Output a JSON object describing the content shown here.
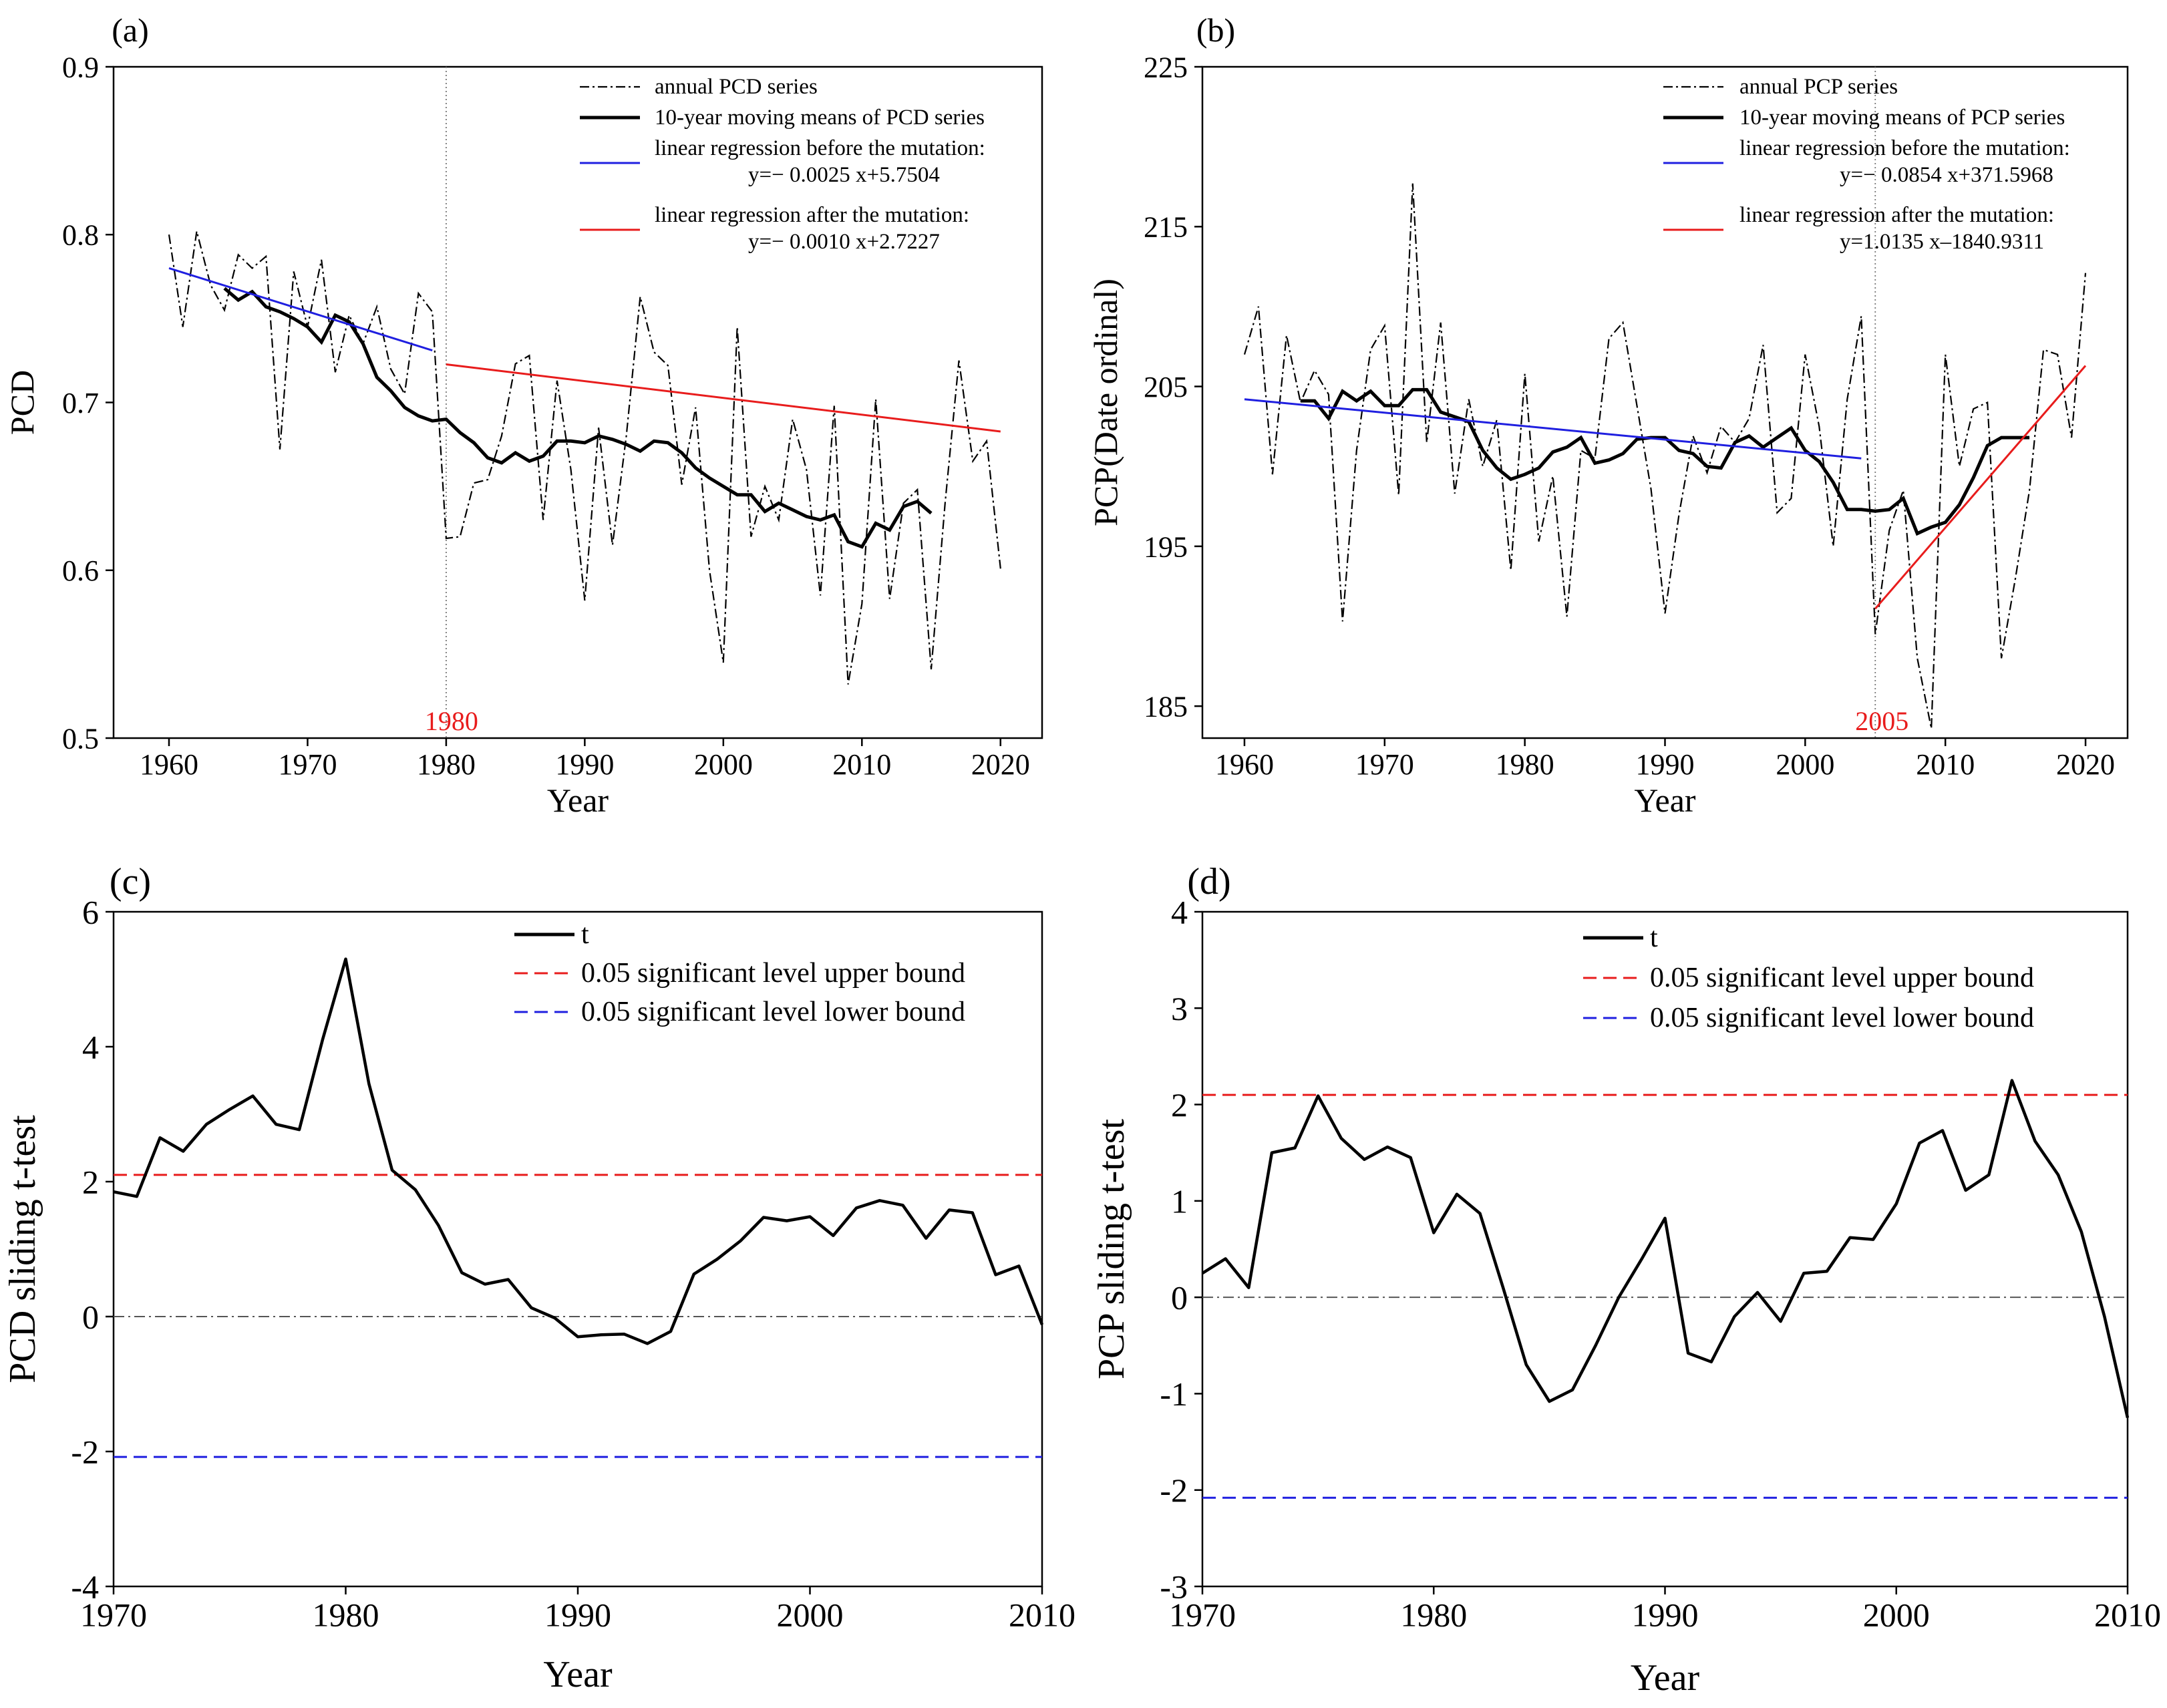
{
  "chart_data": [
    {
      "panel_label": "(a)",
      "type": "line",
      "xlabel": "Year",
      "ylabel": "PCD",
      "xlim": [
        1956,
        2023
      ],
      "ylim": [
        0.5,
        0.9
      ],
      "xticks": [
        "1960",
        "1970",
        "1980",
        "1990",
        "2000",
        "2010",
        "2020"
      ],
      "yticks": [
        "0.5",
        "0.6",
        "0.7",
        "0.8",
        "0.9"
      ],
      "mutation_year": 1980,
      "mutation_label": "1980",
      "legend": [
        {
          "label": "annual PCD series",
          "style": "dashdot",
          "color": "#000000"
        },
        {
          "label": "10-year moving means of PCD series",
          "style": "solid-thick",
          "color": "#000000"
        },
        {
          "label": "linear regression before the mutation:",
          "equation": "y=− 0.0025 x+5.7504",
          "style": "solid",
          "color": "#1f1fe0"
        },
        {
          "label": "linear regression after the mutation:",
          "equation": "y=− 0.0010 x+2.7227",
          "style": "solid",
          "color": "#e81c1c"
        }
      ],
      "series": [
        {
          "name": "annual PCD series",
          "x_start": 1960,
          "values": [
            0.8,
            0.745,
            0.802,
            0.77,
            0.755,
            0.788,
            0.78,
            0.787,
            0.672,
            0.778,
            0.745,
            0.785,
            0.718,
            0.752,
            0.735,
            0.757,
            0.72,
            0.705,
            0.765,
            0.754,
            0.619,
            0.62,
            0.652,
            0.654,
            0.68,
            0.723,
            0.728,
            0.63,
            0.713,
            0.66,
            0.582,
            0.685,
            0.615,
            0.68,
            0.763,
            0.73,
            0.722,
            0.651,
            0.697,
            0.6,
            0.545,
            0.745,
            0.62,
            0.65,
            0.63,
            0.69,
            0.66,
            0.585,
            0.698,
            0.532,
            0.58,
            0.702,
            0.583,
            0.64,
            0.648,
            0.541,
            0.64,
            0.725,
            0.665,
            0.677,
            0.601
          ]
        },
        {
          "name": "10-year moving means of PCD series",
          "x_start": 1964,
          "values": [
            0.768,
            0.761,
            0.766,
            0.757,
            0.754,
            0.75,
            0.745,
            0.736,
            0.752,
            0.748,
            0.735,
            0.715,
            0.707,
            0.697,
            0.692,
            0.689,
            0.69,
            0.682,
            0.676,
            0.667,
            0.664,
            0.67,
            0.665,
            0.668,
            0.677,
            0.677,
            0.676,
            0.68,
            0.678,
            0.675,
            0.671,
            0.677,
            0.676,
            0.67,
            0.661,
            0.655,
            0.65,
            0.645,
            0.645,
            0.635,
            0.64,
            0.636,
            0.632,
            0.63,
            0.633,
            0.617,
            0.614,
            0.628,
            0.624,
            0.638,
            0.641,
            0.634
          ]
        },
        {
          "name": "linear regression before the mutation",
          "x": [
            1960,
            1979
          ],
          "values": [
            0.78,
            0.731
          ]
        },
        {
          "name": "linear regression after the mutation",
          "x": [
            1980,
            2020
          ],
          "values": [
            0.7227,
            0.6827
          ]
        }
      ]
    },
    {
      "panel_label": "(b)",
      "type": "line",
      "xlabel": "Year",
      "ylabel": "PCP(Date ordinal)",
      "xlim": [
        1957,
        2023
      ],
      "ylim": [
        183,
        225
      ],
      "xticks": [
        "1960",
        "1970",
        "1980",
        "1990",
        "2000",
        "2010",
        "2020"
      ],
      "yticks": [
        "185",
        "195",
        "205",
        "215",
        "225"
      ],
      "mutation_year": 2005,
      "mutation_label": "2005",
      "legend": [
        {
          "label": "annual PCP series",
          "style": "dashdot",
          "color": "#000000"
        },
        {
          "label": "10-year moving means of PCP series",
          "style": "solid-thick",
          "color": "#000000"
        },
        {
          "label": "linear regression before the mutation:",
          "equation": "y=− 0.0854 x+371.5968",
          "style": "solid",
          "color": "#1f1fe0"
        },
        {
          "label": "linear regression after the mutation:",
          "equation": "y=1.0135 x–1840.9311",
          "style": "solid",
          "color": "#e81c1c"
        }
      ],
      "series": [
        {
          "name": "annual PCP series",
          "x_start": 1960,
          "values": [
            207,
            210,
            199.5,
            208.2,
            204,
            206,
            204.5,
            190.3,
            201,
            207.3,
            208.8,
            198.2,
            217.7,
            201.5,
            209,
            198.3,
            204.2,
            200,
            202.9,
            193.5,
            205.8,
            195.3,
            199.4,
            190.6,
            201,
            200.5,
            208,
            209,
            203.8,
            198.6,
            190.8,
            197,
            201.9,
            199.6,
            202.5,
            201.5,
            203,
            207.6,
            197.1,
            198,
            207,
            202.5,
            195,
            204.2,
            209.4,
            189.5,
            196,
            198.5,
            188,
            183.6,
            207,
            200,
            203.6,
            204,
            188,
            193,
            198.5,
            207.3,
            207,
            201.8,
            212.1
          ]
        },
        {
          "name": "10-year moving means of PCP series",
          "x_start": 1964,
          "values": [
            204.1,
            204.1,
            203.0,
            204.7,
            204.1,
            204.7,
            203.8,
            203.8,
            204.8,
            204.8,
            203.4,
            203.1,
            202.8,
            201.0,
            199.9,
            199.2,
            199.5,
            199.9,
            200.9,
            201.2,
            201.8,
            200.2,
            200.4,
            200.8,
            201.7,
            201.8,
            201.8,
            201.0,
            200.8,
            200.0,
            199.9,
            201.5,
            201.9,
            201.2,
            201.8,
            202.4,
            201.0,
            200.3,
            199.0,
            197.3,
            197.3,
            197.2,
            197.3,
            198.0,
            195.8,
            196.2,
            196.5,
            197.6,
            199.3,
            201.3,
            201.8,
            201.8,
            201.8
          ]
        },
        {
          "name": "linear regression before the mutation",
          "x": [
            1960,
            2004
          ],
          "values": [
            204.2,
            200.5
          ]
        },
        {
          "name": "linear regression after the mutation",
          "x": [
            2005,
            2020
          ],
          "values": [
            191.1,
            206.3
          ]
        }
      ]
    },
    {
      "panel_label": "(c)",
      "type": "line",
      "xlabel": "Year",
      "ylabel": "PCD sliding t-test",
      "xlim": [
        1970,
        2010
      ],
      "ylim": [
        -4,
        6
      ],
      "xticks": [
        "1970",
        "1980",
        "1990",
        "2000",
        "2010"
      ],
      "yticks": [
        "-4",
        "-2",
        "0",
        "2",
        "4",
        "6"
      ],
      "legend": [
        {
          "label": "t",
          "style": "solid-thick",
          "color": "#000000"
        },
        {
          "label": "0.05 significant level upper bound",
          "style": "dashed",
          "color": "#e81c1c"
        },
        {
          "label": "0.05 significant level lower bound",
          "style": "dashed",
          "color": "#1f1fe0"
        }
      ],
      "zero_line": 0,
      "upper_bound": 2.1,
      "lower_bound": -2.08,
      "series": [
        {
          "name": "t",
          "x_start": 1970,
          "values": [
            1.85,
            1.78,
            2.65,
            2.45,
            2.85,
            3.07,
            3.27,
            2.85,
            2.77,
            4.1,
            5.3,
            3.45,
            2.17,
            1.88,
            1.35,
            0.65,
            0.48,
            0.55,
            0.13,
            -0.02,
            -0.3,
            -0.27,
            -0.26,
            -0.4,
            -0.22,
            0.63,
            0.85,
            1.12,
            1.47,
            1.42,
            1.48,
            1.2,
            1.61,
            1.72,
            1.65,
            1.16,
            1.58,
            1.54,
            0.62,
            0.75,
            -0.12
          ]
        }
      ]
    },
    {
      "panel_label": "(d)",
      "type": "line",
      "xlabel": "Year",
      "ylabel": "PCP sliding t-test",
      "xlim": [
        1970,
        2010
      ],
      "ylim": [
        -3,
        4
      ],
      "xticks": [
        "1970",
        "1980",
        "1990",
        "2000",
        "2010"
      ],
      "yticks": [
        "-3",
        "-2",
        "-1",
        "0",
        "1",
        "2",
        "3",
        "4"
      ],
      "legend": [
        {
          "label": "t",
          "style": "solid-thick",
          "color": "#000000"
        },
        {
          "label": "0.05 significant level upper bound",
          "style": "dashed",
          "color": "#e81c1c"
        },
        {
          "label": "0.05 significant level lower bound",
          "style": "dashed",
          "color": "#1f1fe0"
        }
      ],
      "zero_line": 0,
      "upper_bound": 2.1,
      "lower_bound": -2.08,
      "series": [
        {
          "name": "t",
          "x_start": 1970,
          "values": [
            0.25,
            0.4,
            0.1,
            1.5,
            1.55,
            2.09,
            1.65,
            1.43,
            1.56,
            1.45,
            0.67,
            1.07,
            0.87,
            0.1,
            -0.7,
            -1.08,
            -0.96,
            -0.5,
            0.0,
            0.4,
            0.82,
            -0.58,
            -0.67,
            -0.2,
            0.05,
            -0.25,
            0.25,
            0.27,
            0.62,
            0.6,
            0.97,
            1.6,
            1.73,
            1.11,
            1.27,
            2.25,
            1.62,
            1.27,
            0.68,
            -0.2,
            -1.25
          ]
        }
      ]
    }
  ]
}
